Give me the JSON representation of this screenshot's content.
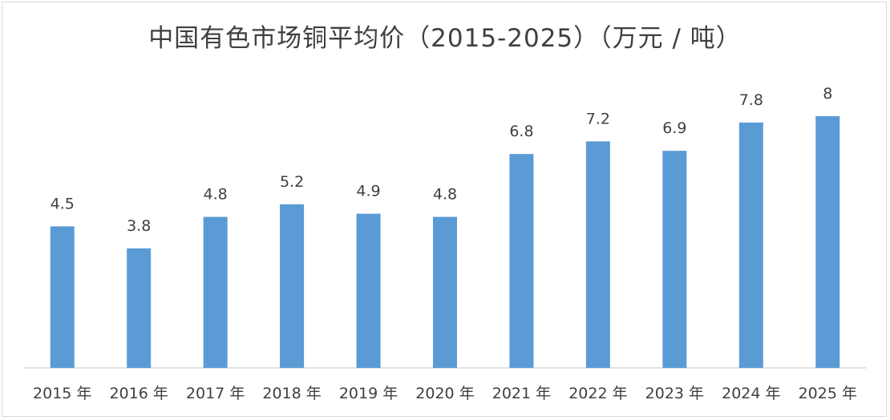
{
  "chart_data": {
    "type": "bar",
    "title": "中国有色市场铜平均价（2015-2025）（万元 / 吨）",
    "xlabel": "",
    "ylabel": "",
    "categories": [
      "2015 年",
      "2016 年",
      "2017 年",
      "2018 年",
      "2019 年",
      "2020 年",
      "2021 年",
      "2022 年",
      "2023 年",
      "2024 年",
      "2025 年"
    ],
    "values": [
      4.5,
      3.8,
      4.8,
      5.2,
      4.9,
      4.8,
      6.8,
      7.2,
      6.9,
      7.8,
      8
    ],
    "value_labels": [
      "4.5",
      "3.8",
      "4.8",
      "5.2",
      "4.9",
      "4.8",
      "6.8",
      "7.2",
      "6.9",
      "7.8",
      "8"
    ],
    "ylim": [
      0,
      8
    ],
    "grid": false,
    "legend": "none",
    "bar_color": "#5b9bd5",
    "axis_color": "#d9d9d9"
  }
}
